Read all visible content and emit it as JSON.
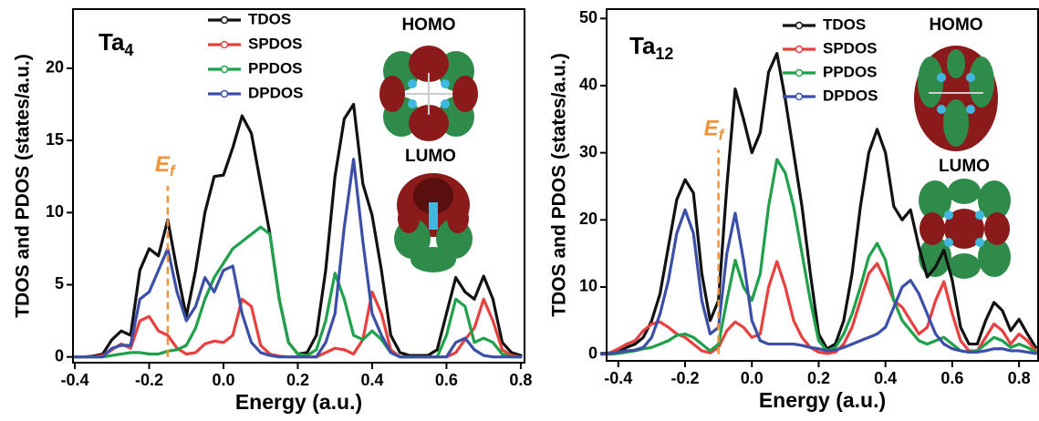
{
  "chart_data": [
    {
      "type": "line",
      "title": "Ta",
      "title_subscript": "4",
      "x_label": "Energy (a.u.)",
      "y_label": "TDOS and PDOS (states/a.u.)",
      "fermi_label": "E",
      "fermi_subscript": "f",
      "fermi_energy": -0.15,
      "orbital_labels": [
        "HOMO",
        "LUMO"
      ],
      "xlim": [
        -0.405,
        0.81
      ],
      "ylim": [
        -0.4,
        24.1
      ],
      "xticks": [
        -0.4,
        -0.2,
        {
          "value": 0,
          "label": "0.0"
        },
        0.2,
        0.4,
        0.6,
        0.8
      ],
      "yticks": [
        0,
        5,
        10,
        15,
        20
      ],
      "x": [
        -0.4,
        -0.375,
        -0.35,
        -0.325,
        -0.3,
        -0.275,
        -0.25,
        -0.225,
        -0.2,
        -0.175,
        -0.15,
        -0.125,
        -0.1,
        -0.075,
        -0.05,
        -0.025,
        0,
        0.025,
        0.05,
        0.075,
        0.1,
        0.125,
        0.15,
        0.175,
        0.2,
        0.225,
        0.25,
        0.275,
        0.3,
        0.325,
        0.35,
        0.375,
        0.4,
        0.425,
        0.45,
        0.475,
        0.5,
        0.525,
        0.55,
        0.575,
        0.6,
        0.625,
        0.65,
        0.675,
        0.7,
        0.725,
        0.75,
        0.775,
        0.8
      ],
      "series": [
        {
          "name": "TDOS",
          "color": "#111111",
          "values": [
            0,
            0,
            0.05,
            0.2,
            1.2,
            1.8,
            1.5,
            6,
            7.5,
            7,
            9.5,
            6,
            2.8,
            6,
            10,
            12.5,
            12.6,
            14.5,
            16.7,
            15.5,
            12,
            8.5,
            4,
            1,
            0.2,
            0.3,
            1.5,
            6,
            12.5,
            16.5,
            17.5,
            12,
            9.8,
            6,
            1.5,
            0.3,
            0.1,
            0.1,
            0.1,
            0.5,
            3,
            5.5,
            4.5,
            4,
            5.6,
            4,
            1,
            0.3,
            0.1
          ]
        },
        {
          "name": "SPDOS",
          "color": "#e8403f",
          "values": [
            0,
            0,
            0,
            0.1,
            0.5,
            0.9,
            0.6,
            2.5,
            2.8,
            1.8,
            1.5,
            0.6,
            0.2,
            0.3,
            0.9,
            1.1,
            1,
            1.5,
            4,
            3.5,
            0.8,
            0.2,
            0.05,
            0,
            0,
            0,
            0,
            0.3,
            0.6,
            0.5,
            0.2,
            1.2,
            4.5,
            3,
            0.5,
            0,
            0,
            0,
            0,
            0,
            0,
            0.3,
            1.2,
            2,
            4,
            2.5,
            0.5,
            0.1,
            0
          ]
        },
        {
          "name": "PPDOS",
          "color": "#1fa04a",
          "values": [
            0,
            0,
            0,
            0,
            0.1,
            0.2,
            0.3,
            0.3,
            0.2,
            0.2,
            0.4,
            0.5,
            0.8,
            2,
            4,
            5.5,
            6.5,
            7.5,
            8,
            8.5,
            9,
            8.5,
            4,
            1,
            0.2,
            0.1,
            0.5,
            2.5,
            5.8,
            4,
            1.5,
            1.2,
            1.8,
            1.2,
            0.3,
            0,
            0,
            0,
            0,
            0,
            1.5,
            4,
            3.5,
            1,
            1.3,
            1,
            0.2,
            0,
            0
          ]
        },
        {
          "name": "DPDOS",
          "color": "#3c4fa8",
          "values": [
            0,
            0,
            0,
            0,
            0.6,
            0.8,
            0.8,
            4,
            4.5,
            6,
            7.5,
            4.5,
            2.5,
            3.5,
            5.5,
            4.5,
            6,
            6.3,
            3,
            1,
            0.3,
            0.1,
            0,
            0,
            0,
            0,
            0,
            1,
            3,
            9,
            13.7,
            8,
            3,
            1.5,
            0.3,
            0,
            0,
            0,
            0,
            0,
            0,
            1,
            1.3,
            0.5,
            0.1,
            0,
            0,
            0,
            0
          ]
        }
      ]
    },
    {
      "type": "line",
      "title": "Ta",
      "title_subscript": "12",
      "x_label": "Energy (a.u.)",
      "y_label": "TDOS and PDOS (states/a.u.)",
      "fermi_label": "E",
      "fermi_subscript": "f",
      "fermi_energy": -0.1,
      "orbital_labels": [
        "HOMO",
        "LUMO"
      ],
      "xlim": [
        -0.435,
        0.857
      ],
      "ylim": [
        -1,
        51.4
      ],
      "xticks": [
        -0.4,
        -0.2,
        {
          "value": 0,
          "label": "0.0"
        },
        0.2,
        0.4,
        0.6,
        0.8
      ],
      "yticks": [
        0,
        10,
        20,
        30,
        40,
        50
      ],
      "x": [
        -0.45,
        -0.425,
        -0.4,
        -0.375,
        -0.35,
        -0.325,
        -0.3,
        -0.275,
        -0.25,
        -0.225,
        -0.2,
        -0.175,
        -0.15,
        -0.125,
        -0.1,
        -0.075,
        -0.05,
        -0.025,
        0,
        0.025,
        0.05,
        0.075,
        0.1,
        0.125,
        0.15,
        0.175,
        0.2,
        0.225,
        0.25,
        0.275,
        0.3,
        0.325,
        0.35,
        0.375,
        0.4,
        0.425,
        0.45,
        0.475,
        0.5,
        0.525,
        0.55,
        0.575,
        0.6,
        0.625,
        0.65,
        0.675,
        0.7,
        0.725,
        0.75,
        0.775,
        0.8,
        0.825,
        0.85
      ],
      "series": [
        {
          "name": "TDOS",
          "color": "#111111",
          "values": [
            0.1,
            0.2,
            0.4,
            1,
            1.5,
            2.5,
            5,
            9,
            16,
            23,
            26,
            24,
            12,
            5,
            8,
            25,
            39.5,
            35,
            30,
            33,
            42,
            44.8,
            38,
            30,
            22,
            12,
            3,
            0.8,
            1.5,
            5,
            12,
            22,
            30,
            33.5,
            30,
            22,
            20,
            21.5,
            16,
            11.5,
            13,
            15.5,
            11,
            4,
            1.5,
            1.5,
            5,
            7.7,
            6.5,
            3.5,
            5.2,
            3,
            1
          ]
        },
        {
          "name": "SPDOS",
          "color": "#e8403f",
          "values": [
            0,
            0.2,
            0.8,
            1.5,
            2,
            3.5,
            4.5,
            4.8,
            4,
            3,
            2.5,
            1.5,
            0.5,
            0.2,
            1,
            3.5,
            4.8,
            4,
            2.5,
            3,
            10,
            13.8,
            10,
            5,
            2.5,
            1,
            0.3,
            0.1,
            0.3,
            1.5,
            4,
            8,
            12,
            13.5,
            11,
            8,
            7,
            5,
            3,
            4,
            8,
            10.8,
            6,
            2,
            0.5,
            0.5,
            2.5,
            4.5,
            3.5,
            1.5,
            3,
            2,
            0.5
          ]
        },
        {
          "name": "PPDOS",
          "color": "#1fa04a",
          "values": [
            0,
            0,
            0.1,
            0.3,
            0.5,
            0.8,
            1,
            1.5,
            2,
            2.8,
            3,
            2.5,
            1.5,
            0.5,
            1.5,
            8,
            14,
            10,
            8,
            12,
            22,
            29,
            27,
            22,
            15,
            8,
            2,
            0.5,
            1,
            3,
            6,
            10,
            14.5,
            16.5,
            14,
            8,
            5,
            3.5,
            2,
            1.5,
            2,
            2.5,
            1.5,
            0.5,
            0.3,
            0.5,
            1.5,
            2.5,
            2,
            1,
            1.5,
            1,
            0.3
          ]
        },
        {
          "name": "DPDOS",
          "color": "#3c4fa8",
          "values": [
            0,
            0.1,
            0.3,
            0.5,
            0.6,
            1,
            2.5,
            6,
            11,
            18,
            21.5,
            18,
            8,
            3,
            4,
            15,
            21,
            14,
            5,
            2,
            1.5,
            1.5,
            1.5,
            1.5,
            1.3,
            1,
            0.8,
            0.5,
            0.6,
            1,
            1.5,
            2,
            2.5,
            3,
            4,
            7,
            10,
            11,
            9,
            6,
            3,
            1.5,
            0.8,
            0.5,
            0.3,
            0.3,
            0.5,
            0.8,
            0.8,
            0.5,
            0.5,
            0.3,
            0.1
          ]
        }
      ]
    }
  ]
}
